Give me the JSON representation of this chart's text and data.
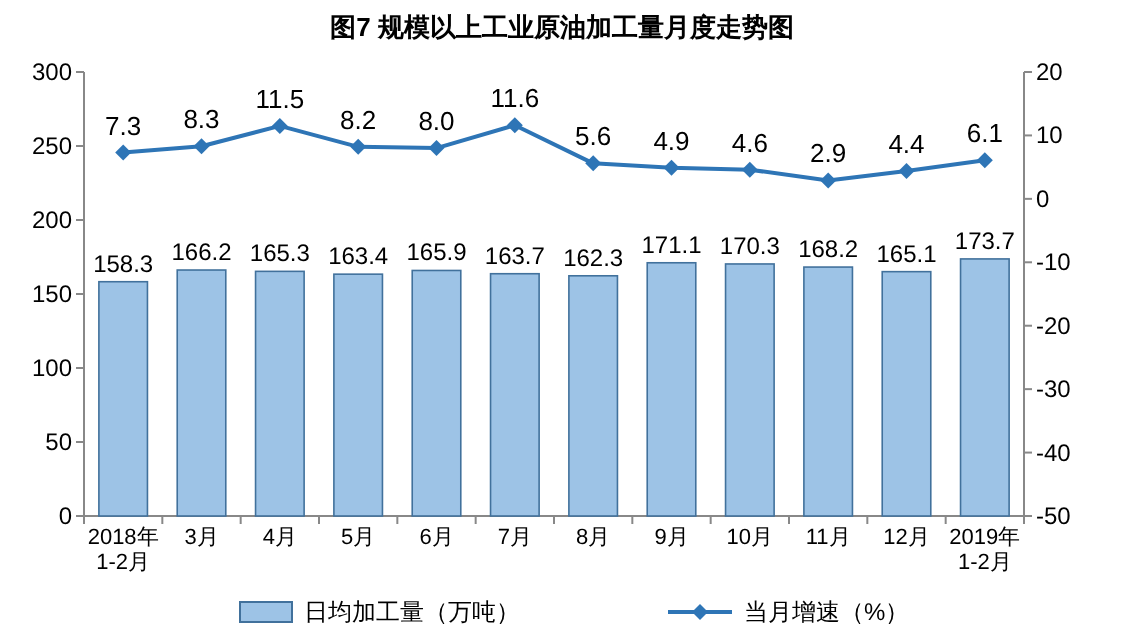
{
  "chart_data": {
    "type": "bar",
    "title": "图7  规模以上工业原油加工量月度走势图",
    "categories": [
      "2018年\n1-2月",
      "3月",
      "4月",
      "5月",
      "6月",
      "7月",
      "8月",
      "9月",
      "10月",
      "11月",
      "12月",
      "2019年\n1-2月"
    ],
    "series": [
      {
        "name": "日均加工量（万吨）",
        "color": "#9dc3e6",
        "values": [
          158.3,
          166.2,
          165.3,
          163.4,
          165.9,
          163.7,
          162.3,
          171.1,
          170.3,
          168.2,
          165.1,
          173.7
        ],
        "value_labels": [
          "158.3",
          "166.2",
          "165.3",
          "163.4",
          "165.9",
          "163.7",
          "162.3",
          "171.1",
          "170.3",
          "168.2",
          "165.1",
          "173.7"
        ]
      },
      {
        "name": "当月增速（%）",
        "type": "line",
        "axis": "y2",
        "color": "#2e75b6",
        "values": [
          7.3,
          8.3,
          11.5,
          8.2,
          8.0,
          11.6,
          5.6,
          4.9,
          4.6,
          2.9,
          4.4,
          6.1
        ],
        "value_labels": [
          "7.3",
          "8.3",
          "11.5",
          "8.2",
          "8.0",
          "11.6",
          "5.6",
          "4.9",
          "4.6",
          "2.9",
          "4.4",
          "6.1"
        ]
      }
    ],
    "ylim": [
      0,
      300
    ],
    "yticks": [
      0,
      50,
      100,
      150,
      200,
      250,
      300
    ],
    "y2lim": [
      -50,
      20
    ],
    "y2ticks": [
      -50,
      -40,
      -30,
      -20,
      -10,
      0,
      10,
      20
    ],
    "legend": "bottom",
    "marker": "diamond",
    "line_style": "solid",
    "grid": false
  }
}
